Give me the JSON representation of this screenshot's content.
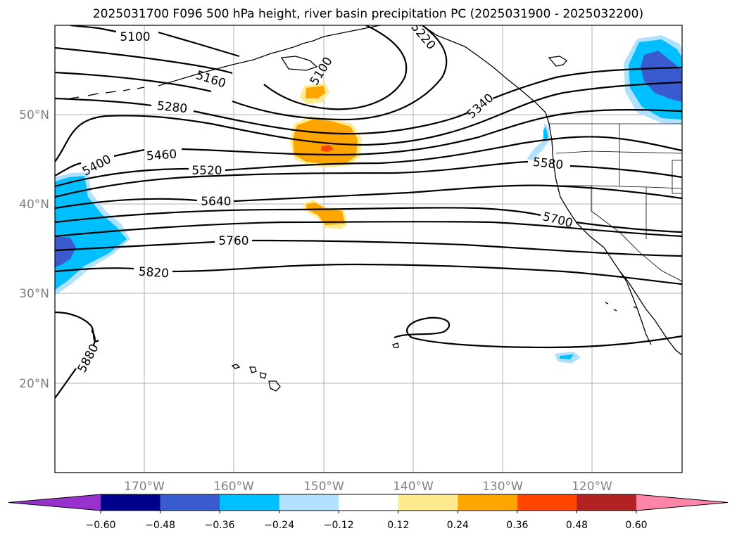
{
  "title": "2025031700 F096 500 hPa height, river basin precipitation PC (2025031900 - 2025032200)",
  "lat_ticks": [
    "50°N",
    "40°N",
    "30°N",
    "20°N"
  ],
  "lon_ticks": [
    "170°W",
    "160°W",
    "150°W",
    "140°W",
    "130°W",
    "120°W"
  ],
  "contour_labels": [
    "5100",
    "5160",
    "5220",
    "5100",
    "5280",
    "5340",
    "5400",
    "5460",
    "5520",
    "5580",
    "5640",
    "5700",
    "5760",
    "5820",
    "5880"
  ],
  "colorbar": {
    "ticks": [
      "−0.60",
      "−0.48",
      "−0.36",
      "−0.24",
      "−0.12",
      "0.12",
      "0.24",
      "0.36",
      "0.48",
      "0.60"
    ],
    "colors": [
      "#9932cc",
      "#00008b",
      "#3a5bcf",
      "#00bfff",
      "#b0e2ff",
      "#ffffff",
      "#ffeb8f",
      "#ffa500",
      "#ff4500",
      "#b22222",
      "#ff85a8"
    ]
  }
}
